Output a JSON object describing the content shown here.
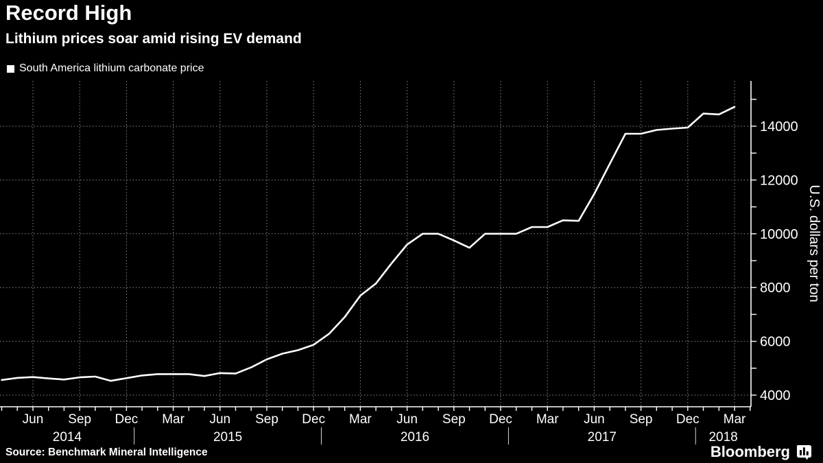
{
  "header": {
    "title": "Record High",
    "subtitle": "Lithium prices soar amid rising EV demand"
  },
  "legend": {
    "label": "South America lithium carbonate price",
    "swatch_color": "#ffffff"
  },
  "footer": {
    "source": "Source: Benchmark Mineral Intelligence",
    "brand": "Bloomberg"
  },
  "colors": {
    "background": "#000000",
    "text": "#ffffff",
    "line": "#ffffff",
    "grid": "#8f8f8f"
  },
  "chart_data": {
    "type": "line",
    "title": "Record High",
    "subtitle": "Lithium prices soar amid rising EV demand",
    "xlabel": "",
    "ylabel": "U.S. dollars per ton",
    "grid": true,
    "legend_position": "top-left",
    "legend_entries": [
      "South America lithium carbonate price"
    ],
    "x_start": "2014-04",
    "x_end": "2018-03",
    "x_interval": "month",
    "x_quarter_tick_labels": [
      "Jun",
      "Sep",
      "Dec",
      "Mar",
      "Jun",
      "Sep",
      "Dec",
      "Mar",
      "Jun",
      "Sep",
      "Dec",
      "Mar",
      "Jun",
      "Sep",
      "Dec",
      "Mar"
    ],
    "year_labels": [
      "2014",
      "2015",
      "2016",
      "2017",
      "2018"
    ],
    "ylim": [
      3570,
      15760
    ],
    "yticks_labeled": [
      4000,
      6000,
      8000,
      10000,
      12000,
      14000
    ],
    "ytick_minor_step": 1000,
    "series": [
      {
        "name": "South America lithium carbonate price",
        "color": "#ffffff",
        "values": [
          4560,
          4640,
          4670,
          4620,
          4580,
          4660,
          4690,
          4530,
          4630,
          4730,
          4780,
          4780,
          4780,
          4710,
          4820,
          4800,
          5030,
          5330,
          5540,
          5670,
          5870,
          6280,
          6900,
          7700,
          8150,
          8900,
          9600,
          10000,
          10000,
          9750,
          9480,
          10000,
          10000,
          10000,
          10250,
          10250,
          10500,
          10480,
          11480,
          12600,
          13720,
          13720,
          13860,
          13910,
          13950,
          14470,
          14440,
          14720
        ]
      }
    ]
  }
}
